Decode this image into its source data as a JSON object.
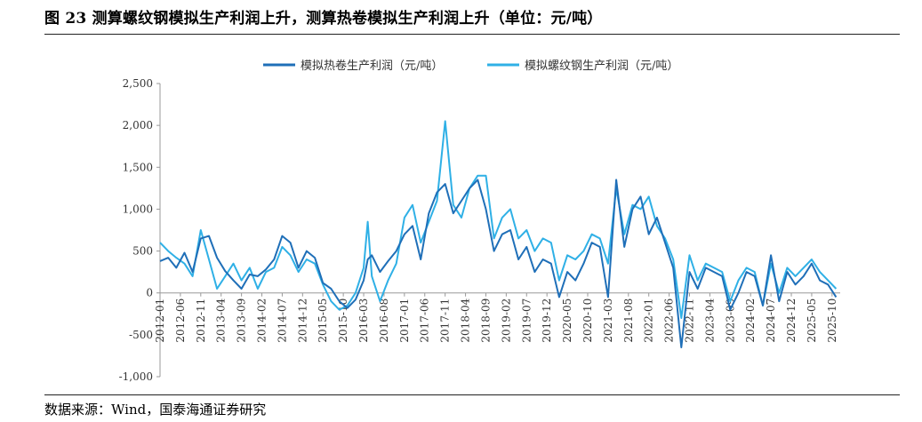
{
  "page": {
    "title": "图 23 测算螺纹钢模拟生产利润上升，测算热卷模拟生产利润上升（单位：元/吨）",
    "source": "数据来源：Wind，国泰海通证券研究"
  },
  "colors": {
    "hot_coil": "#1F6FB8",
    "rebar": "#2FB0E6",
    "axis": "#999999",
    "text": "#333333"
  },
  "chart_data": {
    "type": "line",
    "title": "",
    "xlabel": "",
    "ylabel": "元/吨",
    "ylim": [
      -1000,
      2500
    ],
    "yticks": [
      -1000,
      -500,
      0,
      500,
      1000,
      1500,
      2000,
      2500
    ],
    "ytick_labels": [
      "-1,000",
      "-500",
      "0",
      "500",
      "1,000",
      "1,500",
      "2,000",
      "2,500"
    ],
    "xlim": [
      "2012-01",
      "2025-12"
    ],
    "xtick_labels": [
      "2012-01",
      "2012-06",
      "2012-11",
      "2013-04",
      "2013-09",
      "2014-02",
      "2014-07",
      "2014-12",
      "2015-05",
      "2015-10",
      "2016-03",
      "2016-08",
      "2017-01",
      "2017-06",
      "2017-11",
      "2018-04",
      "2018-09",
      "2019-02",
      "2019-07",
      "2019-12",
      "2020-05",
      "2020-10",
      "2021-03",
      "2021-08",
      "2022-01",
      "2022-06",
      "2022-11",
      "2023-04",
      "2023-09",
      "2024-02",
      "2024-07",
      "2024-12",
      "2025-05",
      "2025-10"
    ],
    "legend_position": "top",
    "series": [
      {
        "name": "模拟热卷生产利润（元/吨）",
        "color": "#1F6FB8",
        "x": [
          "2012-01",
          "2012-03",
          "2012-05",
          "2012-07",
          "2012-09",
          "2012-11",
          "2013-01",
          "2013-03",
          "2013-05",
          "2013-07",
          "2013-09",
          "2013-11",
          "2014-01",
          "2014-03",
          "2014-05",
          "2014-07",
          "2014-09",
          "2014-11",
          "2015-01",
          "2015-03",
          "2015-05",
          "2015-07",
          "2015-09",
          "2015-11",
          "2016-01",
          "2016-03",
          "2016-04",
          "2016-05",
          "2016-07",
          "2016-09",
          "2016-11",
          "2017-01",
          "2017-03",
          "2017-05",
          "2017-07",
          "2017-09",
          "2017-11",
          "2018-01",
          "2018-03",
          "2018-05",
          "2018-07",
          "2018-09",
          "2018-11",
          "2019-01",
          "2019-03",
          "2019-05",
          "2019-07",
          "2019-09",
          "2019-11",
          "2020-01",
          "2020-03",
          "2020-05",
          "2020-07",
          "2020-09",
          "2020-11",
          "2021-01",
          "2021-03",
          "2021-05",
          "2021-07",
          "2021-09",
          "2021-11",
          "2022-01",
          "2022-03",
          "2022-05",
          "2022-07",
          "2022-09",
          "2022-11",
          "2023-01",
          "2023-03",
          "2023-05",
          "2023-07",
          "2023-09",
          "2023-11",
          "2024-01",
          "2024-03",
          "2024-05",
          "2024-07",
          "2024-09",
          "2024-11",
          "2025-01",
          "2025-03",
          "2025-05",
          "2025-07",
          "2025-09",
          "2025-11"
        ],
        "values": [
          380,
          420,
          300,
          480,
          250,
          650,
          680,
          420,
          260,
          150,
          50,
          220,
          200,
          280,
          400,
          680,
          600,
          300,
          500,
          420,
          120,
          50,
          -100,
          -180,
          -80,
          150,
          400,
          450,
          250,
          380,
          500,
          700,
          800,
          400,
          950,
          1200,
          1300,
          950,
          1100,
          1250,
          1350,
          1000,
          500,
          700,
          750,
          400,
          550,
          250,
          400,
          350,
          -50,
          250,
          150,
          350,
          600,
          550,
          -50,
          1350,
          550,
          1000,
          1150,
          700,
          900,
          600,
          300,
          -650,
          250,
          50,
          300,
          250,
          200,
          -200,
          0,
          250,
          200,
          -150,
          450,
          -100,
          250,
          100,
          200,
          350,
          150,
          100,
          -50
        ]
      },
      {
        "name": "模拟螺纹钢生产利润（元/吨）",
        "color": "#2FB0E6",
        "x": [
          "2012-01",
          "2012-03",
          "2012-05",
          "2012-07",
          "2012-09",
          "2012-11",
          "2013-01",
          "2013-03",
          "2013-05",
          "2013-07",
          "2013-09",
          "2013-11",
          "2014-01",
          "2014-03",
          "2014-05",
          "2014-07",
          "2014-09",
          "2014-11",
          "2015-01",
          "2015-03",
          "2015-05",
          "2015-07",
          "2015-09",
          "2015-11",
          "2016-01",
          "2016-03",
          "2016-04",
          "2016-05",
          "2016-07",
          "2016-09",
          "2016-11",
          "2017-01",
          "2017-03",
          "2017-05",
          "2017-07",
          "2017-09",
          "2017-11",
          "2018-01",
          "2018-03",
          "2018-05",
          "2018-07",
          "2018-09",
          "2018-11",
          "2019-01",
          "2019-03",
          "2019-05",
          "2019-07",
          "2019-09",
          "2019-11",
          "2020-01",
          "2020-03",
          "2020-05",
          "2020-07",
          "2020-09",
          "2020-11",
          "2021-01",
          "2021-03",
          "2021-05",
          "2021-07",
          "2021-09",
          "2021-11",
          "2022-01",
          "2022-03",
          "2022-05",
          "2022-07",
          "2022-09",
          "2022-11",
          "2023-01",
          "2023-03",
          "2023-05",
          "2023-07",
          "2023-09",
          "2023-11",
          "2024-01",
          "2024-03",
          "2024-05",
          "2024-07",
          "2024-09",
          "2024-11",
          "2025-01",
          "2025-03",
          "2025-05",
          "2025-07",
          "2025-09",
          "2025-11"
        ],
        "values": [
          600,
          500,
          420,
          350,
          200,
          750,
          400,
          50,
          200,
          350,
          150,
          300,
          50,
          250,
          300,
          550,
          450,
          250,
          400,
          350,
          100,
          -100,
          -200,
          -150,
          0,
          300,
          850,
          200,
          -100,
          150,
          350,
          900,
          1050,
          600,
          850,
          1100,
          2050,
          1050,
          900,
          1250,
          1400,
          1400,
          650,
          900,
          1000,
          650,
          750,
          500,
          650,
          600,
          150,
          450,
          400,
          500,
          700,
          650,
          350,
          1250,
          700,
          1050,
          1000,
          1150,
          800,
          650,
          400,
          -300,
          450,
          150,
          350,
          300,
          250,
          -100,
          150,
          300,
          250,
          -150,
          350,
          0,
          300,
          200,
          300,
          400,
          250,
          150,
          50
        ]
      }
    ]
  }
}
